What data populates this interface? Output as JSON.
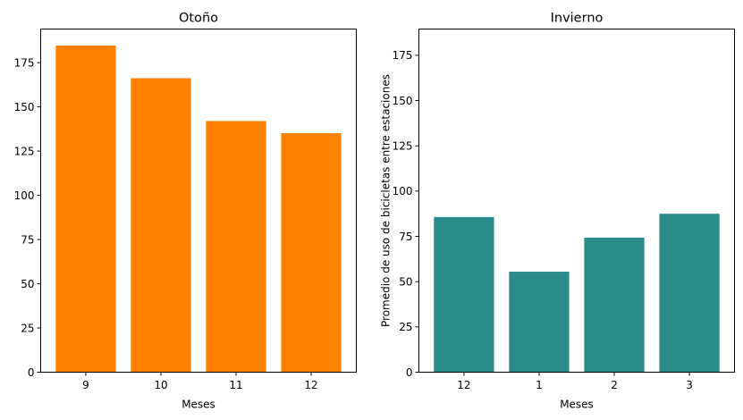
{
  "chart_data": [
    {
      "type": "bar",
      "title": "Otoño",
      "xlabel": "Meses",
      "ylabel": "",
      "categories": [
        "9",
        "10",
        "11",
        "12"
      ],
      "values": [
        184.7,
        166.2,
        142.0,
        135.1
      ],
      "ylim": [
        0,
        194
      ],
      "yticks": [
        0,
        25,
        50,
        75,
        100,
        125,
        150,
        175
      ],
      "color": "#ff7f00",
      "grid": false
    },
    {
      "type": "bar",
      "title": "Invierno",
      "xlabel": "Meses",
      "ylabel": "Promedio de uso de bicicletas entre estaciones",
      "categories": [
        "12",
        "1",
        "2",
        "3"
      ],
      "values": [
        85.7,
        55.5,
        74.3,
        87.5
      ],
      "ylim": [
        0,
        189.5
      ],
      "yticks": [
        0,
        25,
        50,
        75,
        100,
        125,
        150,
        175
      ],
      "color": "#2a8b89",
      "grid": false
    }
  ]
}
